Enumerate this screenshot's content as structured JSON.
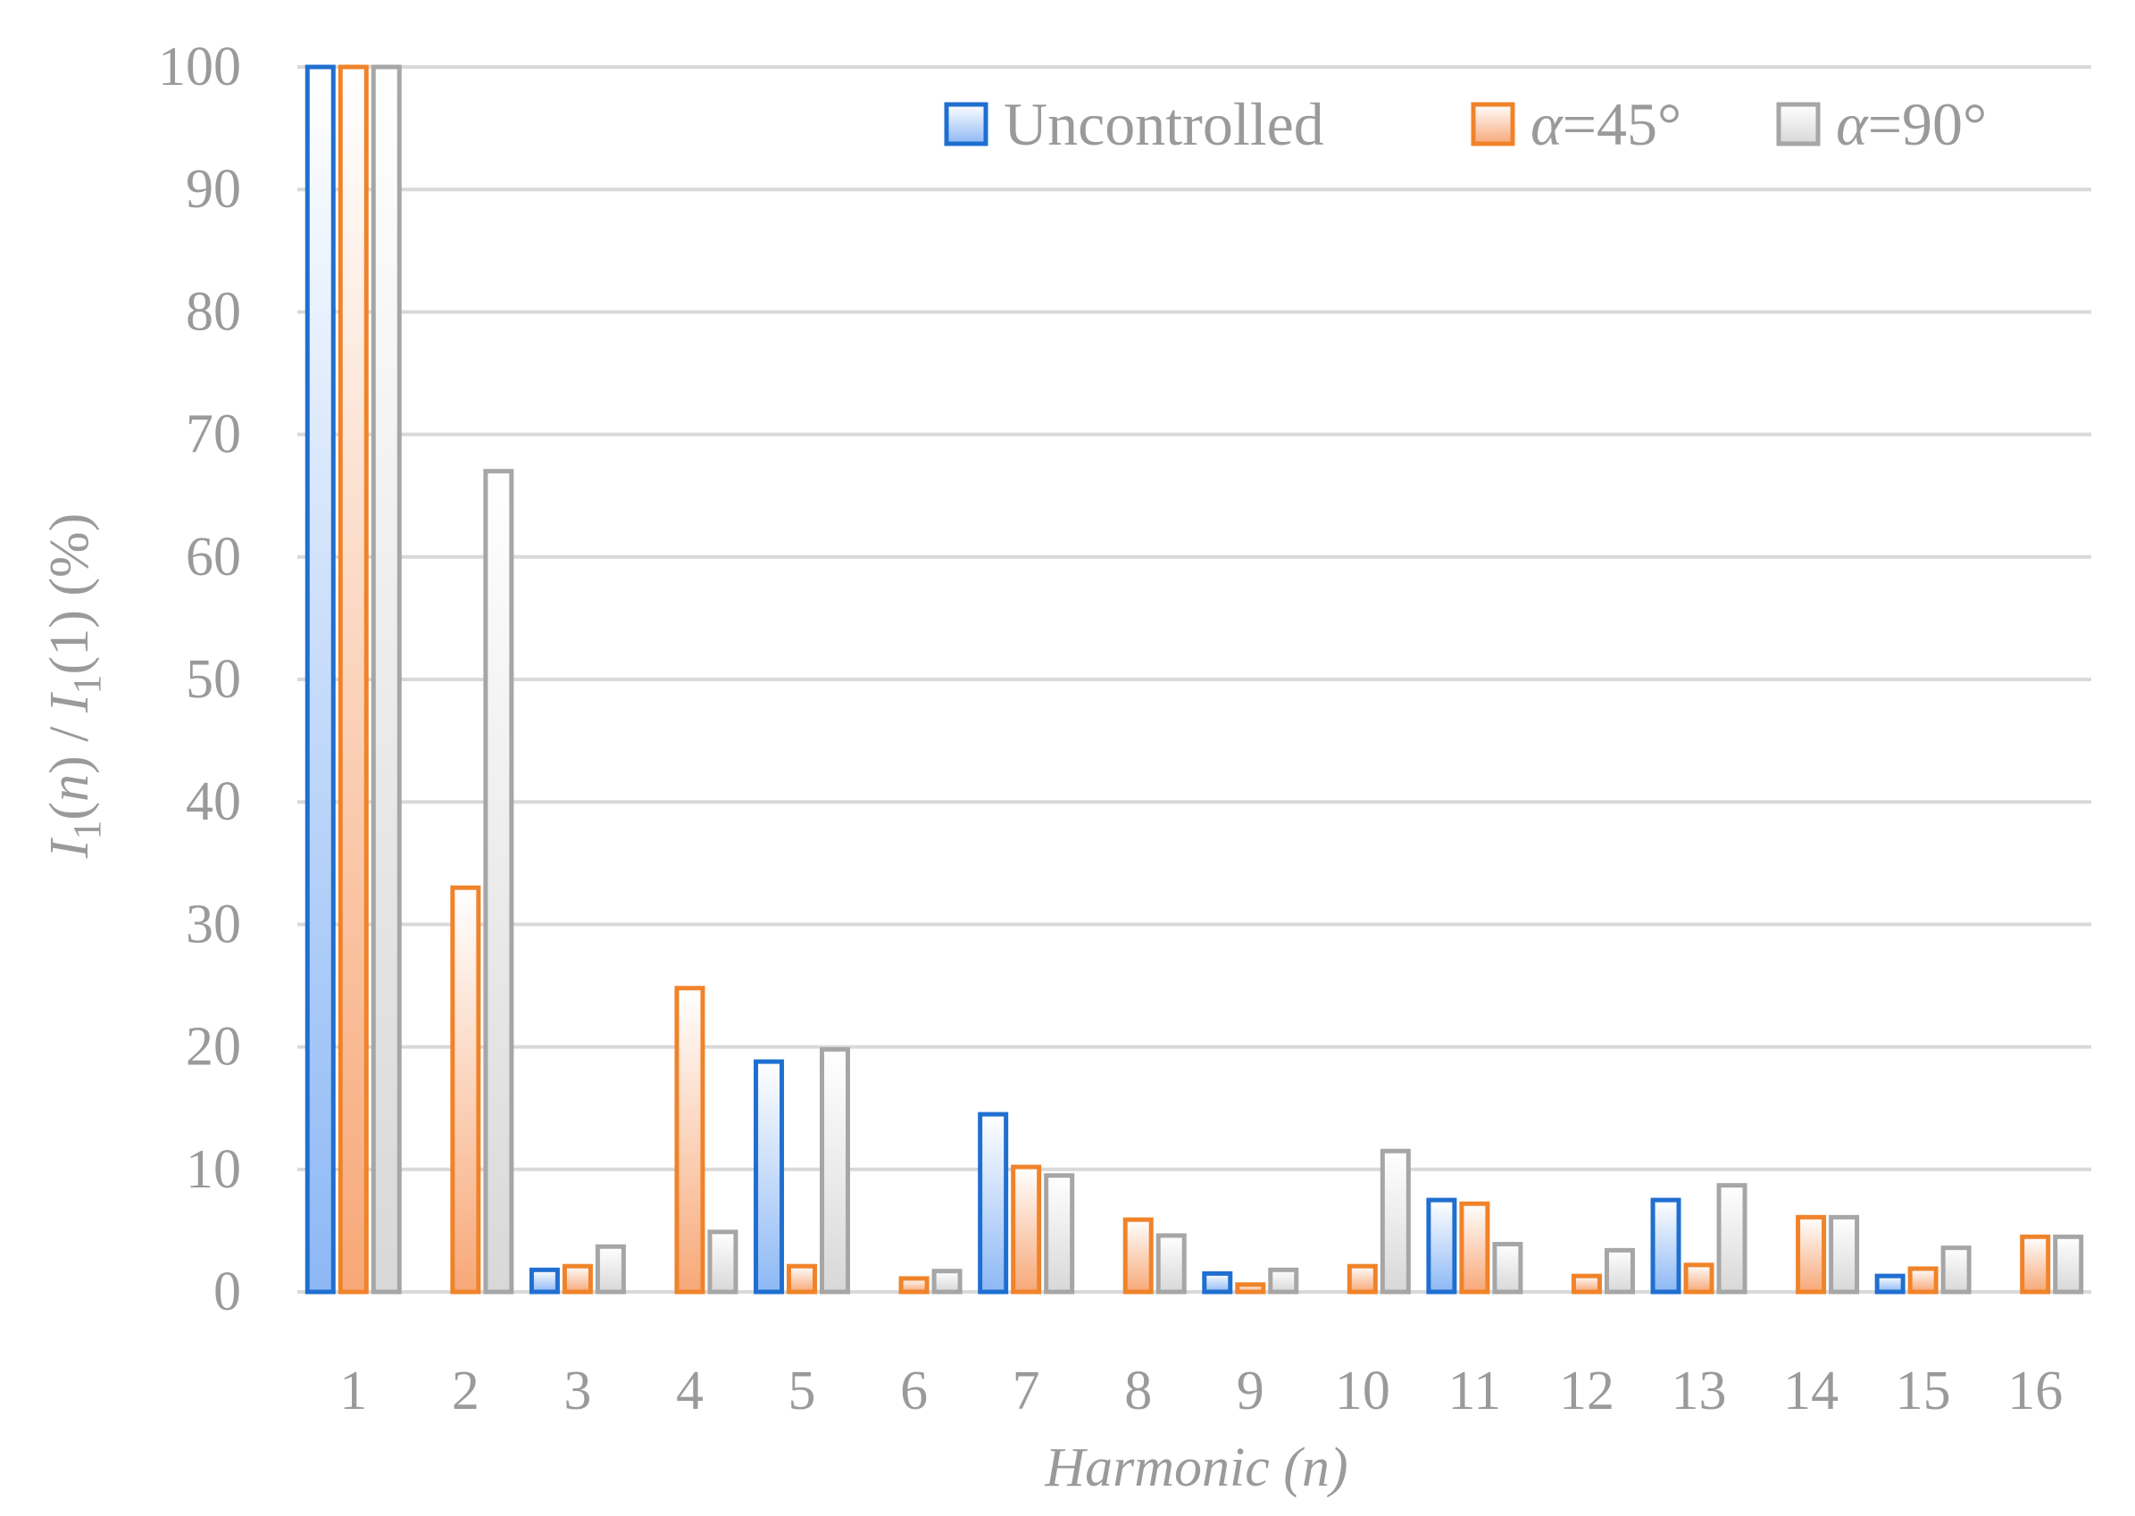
{
  "chart_data": {
    "type": "bar",
    "categories": [
      "1",
      "2",
      "3",
      "4",
      "5",
      "6",
      "7",
      "8",
      "9",
      "10",
      "11",
      "12",
      "13",
      "14",
      "15",
      "16"
    ],
    "series": [
      {
        "name": "Uncontrolled",
        "name_prefix": "",
        "name_rest": "Uncontrolled",
        "values": [
          100,
          0,
          1.8,
          0,
          18.8,
          0,
          14.5,
          0,
          1.5,
          0,
          7.5,
          0,
          7.5,
          0,
          1.3,
          0
        ],
        "stroke": "#1f6fd0",
        "fill_top": "#ffffff",
        "fill_bottom": "#8db8f5"
      },
      {
        "name": "α=45°",
        "name_prefix": "α",
        "name_rest": "=45°",
        "values": [
          100,
          33,
          2.1,
          24.8,
          2.1,
          1.1,
          10.2,
          5.9,
          0.6,
          2.1,
          7.2,
          1.3,
          2.2,
          6.1,
          1.9,
          4.5
        ],
        "stroke": "#f0832a",
        "fill_top": "#ffffff",
        "fill_bottom": "#f7a878"
      },
      {
        "name": "α=90°",
        "name_prefix": "α",
        "name_rest": "=90°",
        "values": [
          100,
          67,
          3.7,
          4.9,
          19.8,
          1.7,
          9.5,
          4.6,
          1.8,
          11.5,
          3.9,
          3.4,
          8.7,
          6.1,
          3.6,
          4.5
        ],
        "stroke": "#a6a6a6",
        "fill_top": "#ffffff",
        "fill_bottom": "#d8d8d8"
      }
    ],
    "ylim": [
      0,
      100
    ],
    "yticks": [
      0,
      10,
      20,
      30,
      40,
      50,
      60,
      70,
      80,
      90,
      100
    ],
    "ylabel": {
      "I1": "I",
      "sub1": "1",
      "paren_open": "(",
      "n": "n",
      "mid": ") / ",
      "I2": "I",
      "sub2": "1",
      "tail": "(1) (%)"
    },
    "xlabel": {
      "italic": "Harmonic (",
      "n": "n",
      "close": ")"
    },
    "grid": true,
    "legend_position": "top-right",
    "gridline_color": "#d9d9d9",
    "text_color": "#9a9a9a"
  }
}
